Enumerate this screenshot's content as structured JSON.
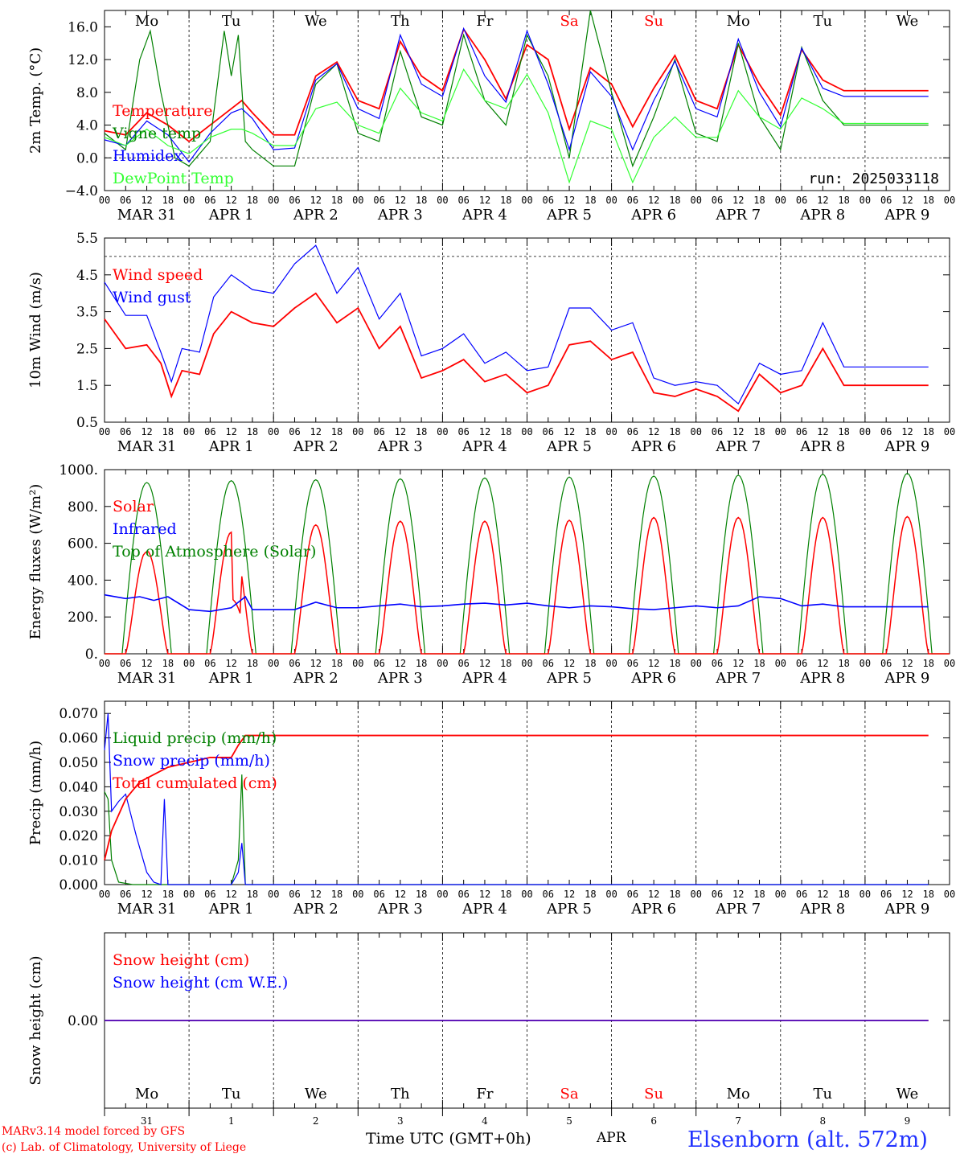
{
  "colors": {
    "red": "#ff0000",
    "blue": "#0000ff",
    "green": "#008000",
    "lightgreen": "#33ff33",
    "black": "#000000"
  },
  "run_label": "run: 2025033118",
  "footer": {
    "credit_line1": "MARv3.14 model forced by GFS",
    "credit_line2": "(c) Lab. of Climatology, University of Liege",
    "time_label": "Time UTC (GMT+0h)",
    "month_label": "APR",
    "station": "Elsenborn (alt. 572m)"
  },
  "hour_ticks": [
    "00",
    "06",
    "12",
    "18"
  ],
  "day_labels": [
    "MAR 31",
    "APR  1",
    "APR  2",
    "APR  3",
    "APR  4",
    "APR  5",
    "APR  6",
    "APR  7",
    "APR  8",
    "APR  9"
  ],
  "weekdays": [
    "Mo",
    "Tu",
    "We",
    "Th",
    "Fr",
    "Sa",
    "Su",
    "Mo",
    "Tu",
    "We"
  ],
  "weekend_days": [
    "Sa",
    "Su"
  ],
  "day_numbers": [
    "31",
    "1",
    "2",
    "3",
    "4",
    "5",
    "6",
    "7",
    "8",
    "9"
  ],
  "chart_data": [
    {
      "type": "line",
      "ylabel": "2m Temp. (°C)",
      "ylim": [
        -4,
        18
      ],
      "yticks": [
        -4,
        0,
        4,
        8,
        12,
        16
      ],
      "ytick_labels": [
        "−4.0",
        "0.0",
        "4.0",
        "8.0",
        "12.0",
        "16.0"
      ],
      "ref_line": 0,
      "x_unit": "hours since MAR 31 00 UTC",
      "series": [
        {
          "name": "Temperature",
          "color": "#ff0000",
          "x": [
            0,
            6,
            12,
            18,
            24,
            30,
            36,
            39,
            42,
            48,
            54,
            60,
            66,
            72,
            78,
            84,
            90,
            96,
            102,
            108,
            114,
            120,
            126,
            132,
            138,
            144,
            150,
            156,
            162,
            168,
            174,
            180,
            186,
            192,
            198,
            204,
            210,
            216,
            222,
            228,
            234
          ],
          "y": [
            3.3,
            2.8,
            5.5,
            4.0,
            2.0,
            4.0,
            6.0,
            7.0,
            5.5,
            2.8,
            2.8,
            10.0,
            11.7,
            7.0,
            6.0,
            14.2,
            10.0,
            8.2,
            15.7,
            12.0,
            7.2,
            13.8,
            12.0,
            3.5,
            11.0,
            9.0,
            3.8,
            8.5,
            12.5,
            7.0,
            6.0,
            13.8,
            9.0,
            5.2,
            13.2,
            9.5,
            8.2,
            8.2,
            8.2,
            8.2,
            8.2
          ]
        },
        {
          "name": "Vigne temp",
          "color": "#008000",
          "x": [
            0,
            6,
            10,
            13,
            16,
            20,
            24,
            30,
            34,
            36,
            38,
            40,
            42,
            48,
            54,
            60,
            66,
            72,
            78,
            84,
            90,
            96,
            102,
            108,
            114,
            120,
            126,
            132,
            138,
            144,
            150,
            156,
            162,
            168,
            174,
            180,
            186,
            192,
            198,
            204,
            210,
            216,
            222,
            228,
            234
          ],
          "y": [
            3.0,
            1.0,
            12.0,
            15.5,
            8.0,
            0.0,
            -1.0,
            2.0,
            15.5,
            10.0,
            15.0,
            2.0,
            1.0,
            -1.0,
            -1.0,
            9.0,
            11.5,
            3.0,
            2.0,
            13.0,
            5.0,
            4.0,
            15.0,
            7.0,
            4.0,
            15.0,
            10.0,
            0.0,
            18.0,
            8.0,
            -1.0,
            5.0,
            12.0,
            3.0,
            2.0,
            14.0,
            5.0,
            1.0,
            13.5,
            7.0,
            4.0,
            4.0,
            4.0,
            4.0,
            4.0
          ]
        },
        {
          "name": "Humidex",
          "color": "#0000ff",
          "x": [
            0,
            6,
            12,
            18,
            24,
            30,
            36,
            39,
            42,
            48,
            54,
            60,
            66,
            72,
            78,
            84,
            90,
            96,
            102,
            108,
            114,
            120,
            126,
            132,
            138,
            144,
            150,
            156,
            162,
            168,
            174,
            180,
            186,
            192,
            198,
            204,
            210,
            216,
            222,
            228,
            234
          ],
          "y": [
            2.2,
            1.5,
            4.5,
            2.8,
            -0.5,
            3.0,
            5.5,
            6.0,
            4.8,
            1.0,
            1.2,
            9.5,
            11.5,
            6.0,
            4.8,
            15.0,
            9.0,
            7.5,
            15.8,
            10.0,
            6.8,
            15.5,
            9.0,
            1.0,
            10.5,
            7.5,
            1.0,
            7.0,
            11.8,
            6.0,
            5.0,
            14.5,
            8.0,
            3.8,
            13.4,
            8.5,
            7.5,
            7.5,
            7.5,
            7.5,
            7.5
          ]
        },
        {
          "name": "DewPoint Temp",
          "color": "#33ff33",
          "x": [
            0,
            6,
            12,
            18,
            24,
            30,
            36,
            39,
            42,
            48,
            54,
            60,
            66,
            72,
            78,
            84,
            90,
            96,
            102,
            108,
            114,
            120,
            126,
            132,
            138,
            144,
            150,
            156,
            162,
            168,
            174,
            180,
            186,
            192,
            198,
            204,
            210,
            216,
            222,
            228,
            234
          ],
          "y": [
            2.5,
            1.5,
            3.5,
            1.5,
            0.5,
            2.5,
            3.5,
            3.5,
            3.0,
            1.5,
            1.5,
            6.0,
            6.8,
            4.0,
            3.0,
            8.5,
            5.5,
            4.5,
            10.8,
            7.0,
            6.0,
            10.2,
            5.5,
            -3.0,
            4.5,
            3.5,
            -3.0,
            2.5,
            5.0,
            2.5,
            2.5,
            8.2,
            5.0,
            3.5,
            7.3,
            6.0,
            4.2,
            4.2,
            4.2,
            4.2,
            4.2
          ]
        }
      ]
    },
    {
      "type": "line",
      "ylabel": "10m Wind (m/s)",
      "ylim": [
        0.5,
        5.5
      ],
      "yticks": [
        0.5,
        1.5,
        2.5,
        3.5,
        4.5,
        5.5
      ],
      "ytick_labels": [
        "0.5",
        "1.5",
        "2.5",
        "3.5",
        "4.5",
        "5.5"
      ],
      "ref_line": 5.0,
      "series": [
        {
          "name": "Wind speed",
          "color": "#ff0000",
          "x": [
            0,
            6,
            12,
            16,
            19,
            22,
            27,
            31,
            36,
            42,
            48,
            54,
            60,
            66,
            72,
            78,
            84,
            90,
            96,
            102,
            108,
            114,
            120,
            126,
            132,
            138,
            144,
            150,
            156,
            162,
            168,
            174,
            180,
            186,
            192,
            198,
            204,
            210,
            216,
            222,
            228,
            234
          ],
          "y": [
            3.3,
            2.5,
            2.6,
            2.1,
            1.2,
            1.9,
            1.8,
            2.9,
            3.5,
            3.2,
            3.1,
            3.6,
            4.0,
            3.2,
            3.6,
            2.5,
            3.1,
            1.7,
            1.9,
            2.2,
            1.6,
            1.8,
            1.3,
            1.5,
            2.6,
            2.7,
            2.2,
            2.4,
            1.3,
            1.2,
            1.4,
            1.2,
            0.8,
            1.8,
            1.3,
            1.5,
            2.5,
            1.5,
            1.5,
            1.5,
            1.5,
            1.5
          ]
        },
        {
          "name": "Wind gust",
          "color": "#0000ff",
          "x": [
            0,
            6,
            12,
            16,
            19,
            22,
            27,
            31,
            36,
            42,
            48,
            54,
            60,
            66,
            72,
            78,
            84,
            90,
            96,
            102,
            108,
            114,
            120,
            126,
            132,
            138,
            144,
            150,
            156,
            162,
            168,
            174,
            180,
            186,
            192,
            198,
            204,
            210,
            216,
            222,
            228,
            234
          ],
          "y": [
            4.3,
            3.4,
            3.4,
            2.4,
            1.6,
            2.5,
            2.4,
            3.9,
            4.5,
            4.1,
            4.0,
            4.8,
            5.3,
            4.0,
            4.7,
            3.3,
            4.0,
            2.3,
            2.5,
            2.9,
            2.1,
            2.4,
            1.9,
            2.0,
            3.6,
            3.6,
            3.0,
            3.2,
            1.7,
            1.5,
            1.6,
            1.5,
            1.0,
            2.1,
            1.8,
            1.9,
            3.2,
            2.0,
            2.0,
            2.0,
            2.0,
            2.0
          ]
        }
      ]
    },
    {
      "type": "line",
      "ylabel": "Energy fluxes (W/m²)",
      "ylim": [
        0,
        1000
      ],
      "yticks": [
        0,
        200,
        400,
        600,
        800,
        1000
      ],
      "ytick_labels": [
        "0.",
        "200.",
        "400.",
        "600.",
        "800.",
        "1000."
      ],
      "toa_peaks": [
        930,
        940,
        945,
        950,
        955,
        960,
        965,
        970,
        975,
        980
      ],
      "solar_peaks": [
        560,
        660,
        700,
        720,
        720,
        725,
        740,
        740,
        740,
        745
      ],
      "series": [
        {
          "name": "Solar",
          "color": "#ff0000"
        },
        {
          "name": "Infrared",
          "color": "#0000ff",
          "x": [
            0,
            6,
            10,
            14,
            18,
            24,
            30,
            36,
            40,
            42,
            48,
            54,
            60,
            66,
            72,
            78,
            84,
            90,
            96,
            102,
            108,
            114,
            120,
            126,
            132,
            138,
            144,
            150,
            156,
            162,
            168,
            174,
            180,
            186,
            192,
            198,
            204,
            210,
            216,
            222,
            228,
            234
          ],
          "y": [
            320,
            300,
            310,
            290,
            310,
            240,
            230,
            250,
            310,
            240,
            240,
            240,
            280,
            250,
            250,
            260,
            270,
            255,
            260,
            270,
            275,
            265,
            275,
            260,
            250,
            260,
            255,
            245,
            240,
            250,
            260,
            250,
            260,
            310,
            300,
            260,
            270,
            255,
            255,
            255,
            255,
            255
          ]
        },
        {
          "name": "Top of Atmosphere (Solar)",
          "color": "#008000"
        }
      ]
    },
    {
      "type": "line",
      "ylabel": "Precip (mm/h)",
      "ylim": [
        0,
        0.075
      ],
      "yticks": [
        0,
        0.01,
        0.02,
        0.03,
        0.04,
        0.05,
        0.06,
        0.07
      ],
      "ytick_labels": [
        "0.000",
        "0.010",
        "0.020",
        "0.030",
        "0.040",
        "0.050",
        "0.060",
        "0.070"
      ],
      "series": [
        {
          "name": "Liquid precip (mm/h)",
          "color": "#008000",
          "x": [
            0,
            1,
            2,
            4,
            8,
            18,
            36,
            38,
            39,
            40,
            234
          ],
          "y": [
            0.038,
            0.035,
            0.01,
            0.001,
            0,
            0,
            0,
            0.01,
            0.045,
            0.0,
            0
          ]
        },
        {
          "name": "Snow precip (mm/h)",
          "color": "#0000ff",
          "x": [
            0,
            1,
            2,
            4,
            6,
            9,
            12,
            14,
            16,
            17,
            18,
            19,
            36,
            38,
            39,
            40,
            234
          ],
          "y": [
            0.055,
            0.07,
            0.03,
            0.034,
            0.037,
            0.02,
            0.005,
            0.001,
            0.0,
            0.035,
            0.0,
            0,
            0,
            0.005,
            0.017,
            0.0,
            0
          ]
        },
        {
          "name": "Total cumulated (cm)",
          "color": "#ff0000",
          "x": [
            0,
            2,
            6,
            10,
            14,
            18,
            24,
            30,
            36,
            38,
            40,
            234
          ],
          "y": [
            0.01,
            0.022,
            0.035,
            0.042,
            0.045,
            0.048,
            0.05,
            0.052,
            0.052,
            0.057,
            0.061,
            0.061
          ]
        }
      ]
    },
    {
      "type": "line",
      "ylabel": "Snow height (cm)",
      "ylim": [
        -1,
        1
      ],
      "yticks": [
        0
      ],
      "ytick_labels": [
        "0.00"
      ],
      "series": [
        {
          "name": "Snow height (cm)",
          "color": "#ff0000",
          "x": [
            0,
            234
          ],
          "y": [
            0,
            0
          ]
        },
        {
          "name": "Snow height (cm W.E.)",
          "color": "#0000ff",
          "x": [
            0,
            234
          ],
          "y": [
            0,
            0
          ]
        }
      ]
    }
  ]
}
